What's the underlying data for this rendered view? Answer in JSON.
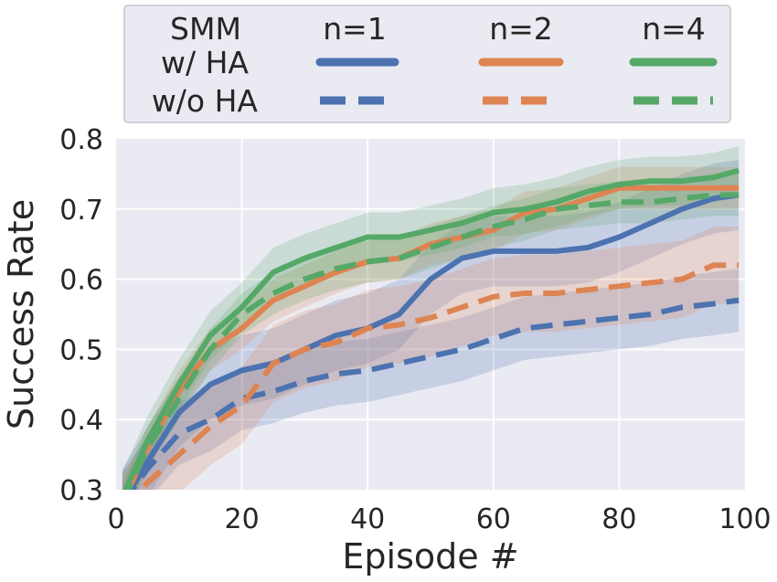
{
  "chart_data": {
    "type": "line",
    "xlabel": "Episode #",
    "ylabel": "Success Rate",
    "xlim": [
      0,
      100
    ],
    "ylim": [
      0.3,
      0.8
    ],
    "xticks": [
      0,
      20,
      40,
      60,
      80,
      100
    ],
    "yticks": [
      0.3,
      0.4,
      0.5,
      0.6,
      0.7,
      0.8
    ],
    "x_tick_labels": [
      "0",
      "20",
      "40",
      "60",
      "80",
      "100"
    ],
    "y_tick_labels": [
      "0.3",
      "0.4",
      "0.5",
      "0.6",
      "0.7",
      "0.8"
    ],
    "grid": true,
    "legend": {
      "position": "top",
      "header": "SMM",
      "columns": [
        "n=1",
        "n=2",
        "n=4"
      ],
      "rows": [
        "w/ HA",
        "w/o HA"
      ]
    },
    "x": [
      1,
      5,
      10,
      15,
      20,
      25,
      30,
      35,
      40,
      45,
      50,
      55,
      60,
      65,
      70,
      75,
      80,
      85,
      90,
      95,
      99
    ],
    "series": [
      {
        "n": "n=1",
        "ha": "w/ HA",
        "color": "#4c72b0",
        "dash": "solid",
        "values": [
          0.28,
          0.34,
          0.41,
          0.45,
          0.47,
          0.48,
          0.5,
          0.52,
          0.53,
          0.55,
          0.6,
          0.63,
          0.64,
          0.64,
          0.64,
          0.645,
          0.66,
          0.68,
          0.7,
          0.715,
          0.72
        ],
        "band": 0.05
      },
      {
        "n": "n=2",
        "ha": "w/ HA",
        "color": "#dd8452",
        "dash": "solid",
        "values": [
          0.28,
          0.36,
          0.44,
          0.5,
          0.53,
          0.57,
          0.59,
          0.61,
          0.625,
          0.63,
          0.65,
          0.66,
          0.67,
          0.695,
          0.7,
          0.715,
          0.73,
          0.73,
          0.73,
          0.73,
          0.73
        ],
        "band": 0.03
      },
      {
        "n": "n=4",
        "ha": "w/ HA",
        "color": "#55a868",
        "dash": "solid",
        "values": [
          0.29,
          0.37,
          0.45,
          0.52,
          0.56,
          0.61,
          0.63,
          0.645,
          0.66,
          0.66,
          0.67,
          0.68,
          0.695,
          0.7,
          0.71,
          0.725,
          0.735,
          0.74,
          0.74,
          0.745,
          0.755
        ],
        "band": 0.035
      },
      {
        "n": "n=1",
        "ha": "w/o HA",
        "color": "#4c72b0",
        "dash": "dashed",
        "values": [
          0.28,
          0.33,
          0.38,
          0.4,
          0.43,
          0.44,
          0.455,
          0.465,
          0.47,
          0.48,
          0.49,
          0.5,
          0.515,
          0.53,
          0.535,
          0.54,
          0.545,
          0.55,
          0.56,
          0.565,
          0.57
        ],
        "band": 0.045
      },
      {
        "n": "n=2",
        "ha": "w/o HA",
        "color": "#dd8452",
        "dash": "dashed",
        "values": [
          0.27,
          0.31,
          0.35,
          0.39,
          0.42,
          0.48,
          0.5,
          0.51,
          0.53,
          0.535,
          0.545,
          0.56,
          0.575,
          0.58,
          0.58,
          0.585,
          0.59,
          0.595,
          0.6,
          0.62,
          0.62
        ],
        "band": 0.055
      },
      {
        "n": "n=4",
        "ha": "w/o HA",
        "color": "#55a868",
        "dash": "dashed",
        "values": [
          0.28,
          0.36,
          0.43,
          0.5,
          0.55,
          0.58,
          0.6,
          0.615,
          0.625,
          0.63,
          0.645,
          0.66,
          0.675,
          0.685,
          0.7,
          0.705,
          0.71,
          0.71,
          0.715,
          0.72,
          0.72
        ],
        "band": 0.03
      }
    ]
  }
}
